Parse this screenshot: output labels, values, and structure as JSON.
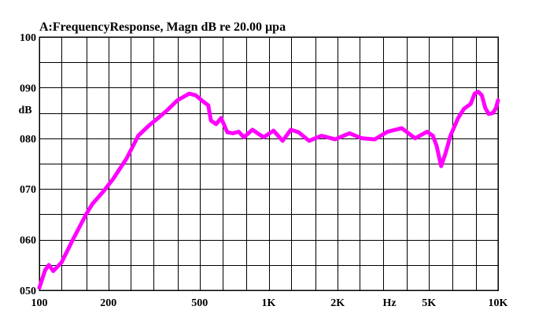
{
  "chart_data": {
    "type": "line",
    "title": "A:FrequencyResponse,  Magn dB re 20.00 µpa",
    "ylabel": "dB",
    "xlabel": "Hz",
    "x_scale": "log",
    "xlim": [
      100,
      10000
    ],
    "ylim": [
      50,
      100
    ],
    "grid": true,
    "line_color": "#ff00ff",
    "y_ticks": [
      {
        "value": 100,
        "label": "100"
      },
      {
        "value": 90,
        "label": "090"
      },
      {
        "value": 80,
        "label": "080"
      },
      {
        "value": 70,
        "label": "070"
      },
      {
        "value": 60,
        "label": "060"
      },
      {
        "value": 50,
        "label": "050"
      }
    ],
    "y_gridlines": [
      100,
      95,
      90,
      85,
      80,
      75,
      70,
      65,
      60,
      55,
      50
    ],
    "x_ticks": [
      {
        "value": 100,
        "label": "100"
      },
      {
        "value": 200,
        "label": "200"
      },
      {
        "value": 500,
        "label": "500"
      },
      {
        "value": 1000,
        "label": "1K"
      },
      {
        "value": 2000,
        "label": "2K"
      },
      {
        "value": 5000,
        "label": "5K"
      },
      {
        "value": 10000,
        "label": "10K"
      }
    ],
    "x_gridlines": [
      100,
      125,
      160,
      200,
      250,
      315,
      400,
      500,
      630,
      800,
      1000,
      1250,
      1600,
      2000,
      2500,
      3150,
      4000,
      5000,
      6300,
      8000,
      10000
    ],
    "series": [
      {
        "x": [
          100,
          106,
          110,
          115,
          125,
          140,
          160,
          170,
          190,
          210,
          240,
          270,
          300,
          330,
          360,
          400,
          450,
          480,
          520,
          545,
          560,
          590,
          620,
          660,
          700,
          740,
          780,
          850,
          950,
          1050,
          1150,
          1250,
          1350,
          1500,
          1700,
          1950,
          2250,
          2550,
          2900,
          3300,
          3800,
          4350,
          4900,
          5200,
          5400,
          5650,
          5900,
          6200,
          6700,
          7100,
          7600,
          7900,
          8200,
          8500,
          8800,
          9100,
          9500,
          9800,
          10000
        ],
        "y": [
          50.5,
          54,
          55,
          53.8,
          55.5,
          60,
          65,
          67,
          69.5,
          72,
          76,
          80.5,
          82.5,
          84,
          85.5,
          87.5,
          88.8,
          88.5,
          87.2,
          86.5,
          83.5,
          82.8,
          84,
          81.2,
          81,
          81.3,
          80.2,
          81.7,
          80.2,
          81.5,
          79.5,
          81.7,
          81.2,
          79.5,
          80.5,
          79.8,
          81,
          80,
          79.8,
          81.3,
          82,
          80,
          81.3,
          80.5,
          78.5,
          74.5,
          77,
          80.5,
          84,
          85.8,
          86.8,
          88.8,
          89.2,
          88.5,
          86,
          84.8,
          85,
          86,
          87.5
        ]
      }
    ]
  }
}
